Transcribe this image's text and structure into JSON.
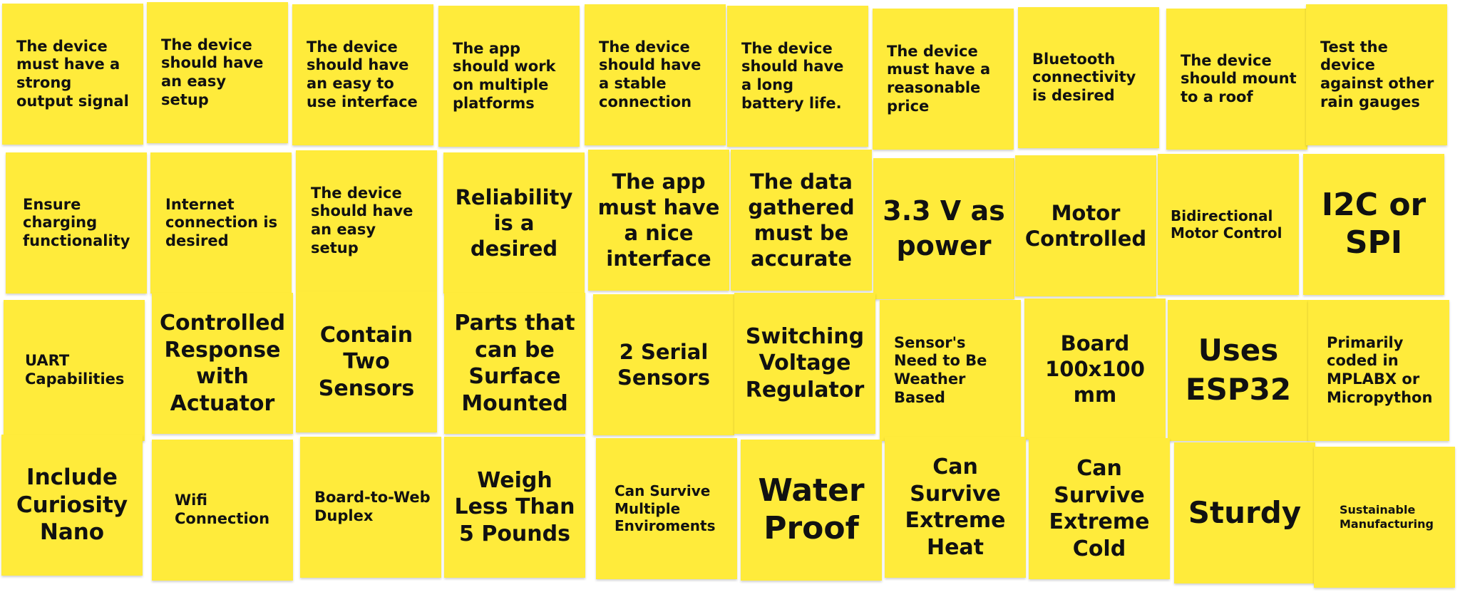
{
  "board": {
    "note_color": "#ffeb3b",
    "notes": [
      "The device must have a strong output signal",
      "The device should have an easy setup",
      "The device should have an easy to use interface",
      "The app should work on multiple platforms",
      "The device should have a stable connection",
      "The device should have a long battery life.",
      "The device must have a reasonable price",
      "Bluetooth connectivity is desired",
      "The device should mount to a roof",
      "Test the device against other rain gauges",
      "Ensure charging functionality",
      "Internet connection is desired",
      "The device should have an easy setup",
      "Reliability is a desired",
      "The app must have a nice interface",
      "The data gathered must be accurate",
      "3.3 V as power",
      "Motor Controlled",
      "Bidirectional Motor Control",
      "I2C or SPI",
      "UART Capabilities",
      "Controlled Response with Actuator",
      "Contain Two Sensors",
      "Parts that can be Surface Mounted",
      "2 Serial Sensors",
      "Switching Voltage Regulator",
      "Sensor's Need to Be Weather Based",
      "Board 100x100 mm",
      "Uses ESP32",
      "Primarily coded in MPLABX or Micropython",
      "Include Curiosity Nano",
      "Wifi Connection",
      "Board-to-Web Duplex",
      "Weigh Less Than 5 Pounds",
      "Can Survive Multiple Enviroments",
      "Water Proof",
      "Can Survive Extreme Heat",
      "Can Survive Extreme Cold",
      "Sturdy",
      "Sustainable Manufacturing"
    ]
  }
}
